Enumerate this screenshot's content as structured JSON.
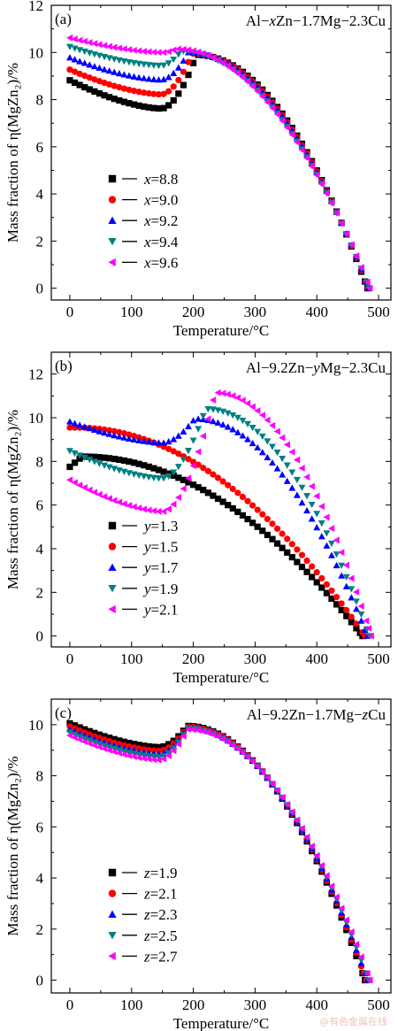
{
  "watermark": "@有色金属在线",
  "chart_data": [
    {
      "type": "scatter",
      "panel_label": "(a)",
      "alloy_label": {
        "pre": "Al−",
        "var": "x",
        "post": "Zn−1.7Mg−2.3Cu"
      },
      "xlabel": "Temperature/°C",
      "ylabel": "Mass fraction of η(MgZn₂)/%",
      "xlim": [
        -30,
        520
      ],
      "ylim": [
        -0.5,
        12
      ],
      "xticks": [
        0,
        100,
        200,
        300,
        400,
        500
      ],
      "yticks": [
        0,
        2,
        4,
        6,
        8,
        10,
        12
      ],
      "legend_var": "x",
      "series": [
        {
          "name": "x=8.8",
          "var_value": "8.8",
          "color": "#000000",
          "marker": "square",
          "start": 8.82,
          "min_x": 148,
          "min_y": 7.62,
          "peak_x": 205,
          "peak_y": 9.9,
          "end_x": 482
        },
        {
          "name": "x=9.0",
          "var_value": "9.0",
          "color": "#ff0000",
          "marker": "circle",
          "start": 9.27,
          "min_x": 148,
          "min_y": 8.22,
          "peak_x": 198,
          "peak_y": 9.95,
          "end_x": 483
        },
        {
          "name": "x=9.2",
          "var_value": "9.2",
          "color": "#0000ff",
          "marker": "triangle-up",
          "start": 9.78,
          "min_x": 148,
          "min_y": 8.84,
          "peak_x": 192,
          "peak_y": 10.0,
          "end_x": 484
        },
        {
          "name": "x=9.4",
          "var_value": "9.4",
          "color": "#008080",
          "marker": "triangle-down",
          "start": 10.24,
          "min_x": 148,
          "min_y": 9.44,
          "peak_x": 180,
          "peak_y": 10.05,
          "end_x": 485
        },
        {
          "name": "x=9.6",
          "var_value": "9.6",
          "color": "#ff00ff",
          "marker": "triangle-left",
          "start": 10.62,
          "min_x": 150,
          "min_y": 10.0,
          "peak_x": 172,
          "peak_y": 10.15,
          "end_x": 486
        }
      ]
    },
    {
      "type": "scatter",
      "panel_label": "(b)",
      "alloy_label": {
        "pre": "Al−9.2Zn−",
        "var": "y",
        "post": "Mg−2.3Cu"
      },
      "xlabel": "Temperature/°C",
      "ylabel": "Mass fraction of η(MgZn₂)/%",
      "xlim": [
        -30,
        520
      ],
      "ylim": [
        -0.5,
        13
      ],
      "xticks": [
        0,
        100,
        200,
        300,
        400,
        500
      ],
      "yticks": [
        0,
        2,
        4,
        6,
        8,
        10,
        12
      ],
      "legend_var": "y",
      "series": [
        {
          "name": "y=1.3",
          "var_value": "1.3",
          "color": "#000000",
          "marker": "square",
          "start": 7.75,
          "min_x": 20,
          "min_y": 8.22,
          "peak_x": 20,
          "peak_y": 8.22,
          "end_x": 474,
          "mono": true
        },
        {
          "name": "y=1.5",
          "var_value": "1.5",
          "color": "#ff0000",
          "marker": "circle",
          "start": 9.55,
          "min_x": 10,
          "min_y": 9.55,
          "peak_x": 10,
          "peak_y": 9.55,
          "end_x": 478,
          "mono": true
        },
        {
          "name": "y=1.7",
          "var_value": "1.7",
          "color": "#0000ff",
          "marker": "triangle-up",
          "start": 9.82,
          "min_x": 150,
          "min_y": 8.85,
          "peak_x": 202,
          "peak_y": 9.95,
          "end_x": 482
        },
        {
          "name": "y=1.9",
          "var_value": "1.9",
          "color": "#008080",
          "marker": "triangle-down",
          "start": 8.48,
          "min_x": 150,
          "min_y": 7.22,
          "peak_x": 220,
          "peak_y": 10.4,
          "end_x": 485
        },
        {
          "name": "y=2.1",
          "var_value": "2.1",
          "color": "#ff00ff",
          "marker": "triangle-left",
          "start": 7.15,
          "min_x": 150,
          "min_y": 5.7,
          "peak_x": 235,
          "peak_y": 11.15,
          "end_x": 488
        }
      ]
    },
    {
      "type": "scatter",
      "panel_label": "(c)",
      "alloy_label": {
        "pre": "Al−9.2Zn−1.7Mg−",
        "var": "z",
        "post": "Cu"
      },
      "xlabel": "Temperature/°C",
      "ylabel": "Mass fraction of η(MgZn₂)/%",
      "xlim": [
        -30,
        520
      ],
      "ylim": [
        -0.5,
        11
      ],
      "xticks": [
        0,
        100,
        200,
        300,
        400,
        500
      ],
      "yticks": [
        0,
        2,
        4,
        6,
        8,
        10
      ],
      "legend_var": "z",
      "series": [
        {
          "name": "z=1.9",
          "var_value": "1.9",
          "color": "#000000",
          "marker": "square",
          "start": 10.05,
          "min_x": 145,
          "min_y": 9.12,
          "peak_x": 190,
          "peak_y": 9.95,
          "end_x": 478
        },
        {
          "name": "z=2.1",
          "var_value": "2.1",
          "color": "#ff0000",
          "marker": "circle",
          "start": 9.93,
          "min_x": 145,
          "min_y": 8.98,
          "peak_x": 190,
          "peak_y": 9.92,
          "end_x": 480
        },
        {
          "name": "z=2.3",
          "var_value": "2.3",
          "color": "#0000ff",
          "marker": "triangle-up",
          "start": 9.82,
          "min_x": 145,
          "min_y": 8.86,
          "peak_x": 190,
          "peak_y": 9.88,
          "end_x": 482
        },
        {
          "name": "z=2.5",
          "var_value": "2.5",
          "color": "#008080",
          "marker": "triangle-down",
          "start": 9.7,
          "min_x": 145,
          "min_y": 8.74,
          "peak_x": 190,
          "peak_y": 9.85,
          "end_x": 484
        },
        {
          "name": "z=2.7",
          "var_value": "2.7",
          "color": "#ff00ff",
          "marker": "triangle-left",
          "start": 9.58,
          "min_x": 145,
          "min_y": 8.62,
          "peak_x": 190,
          "peak_y": 9.82,
          "end_x": 486
        }
      ]
    }
  ]
}
